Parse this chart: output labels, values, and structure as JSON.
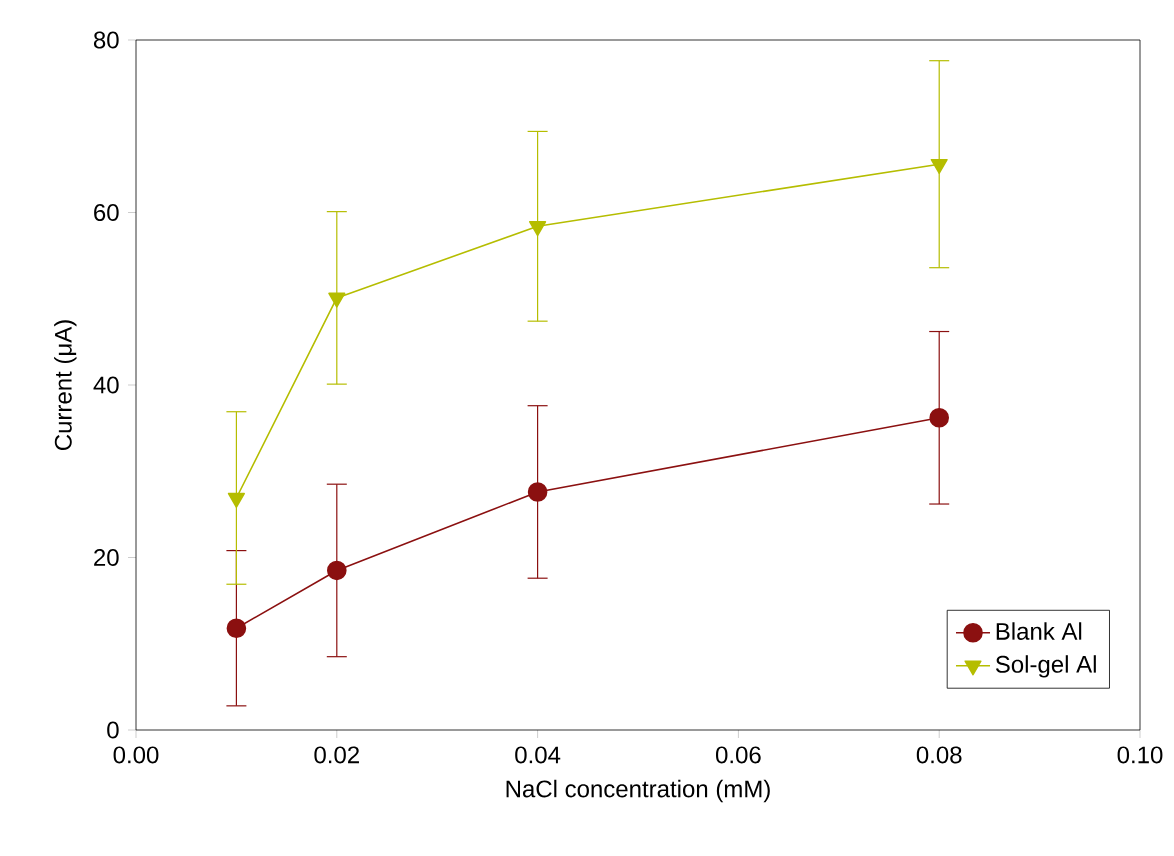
{
  "chart_data": {
    "type": "line",
    "xlabel": "NaCl concentration (mM)",
    "ylabel": "Current (μA)",
    "x": [
      0.01,
      0.02,
      0.04,
      0.08
    ],
    "series": [
      {
        "name": "Blank Al",
        "color": "#8b1010",
        "marker": "circle",
        "values": [
          11.8,
          18.5,
          27.6,
          36.2
        ],
        "errors": [
          9,
          10,
          10,
          10
        ]
      },
      {
        "name": "Sol-gel Al",
        "color": "#b5bd00",
        "marker": "triangle",
        "values": [
          26.9,
          50.1,
          58.4,
          65.6
        ],
        "errors": [
          10,
          10,
          11,
          12
        ]
      }
    ],
    "xlim": [
      0,
      0.1
    ],
    "xticks": [
      {
        "value": 0,
        "label": "0.00"
      },
      {
        "value": 0.02,
        "label": "0.02"
      },
      {
        "value": 0.04,
        "label": "0.04"
      },
      {
        "value": 0.06,
        "label": "0.06"
      },
      {
        "value": 0.08,
        "label": "0.08"
      },
      {
        "value": 0.1,
        "label": "0.10"
      }
    ],
    "ylim": [
      0,
      80
    ],
    "yticks": [
      0,
      20,
      40,
      60,
      80
    ],
    "grid": false,
    "legend": "bottom right",
    "line_style": "solid"
  }
}
